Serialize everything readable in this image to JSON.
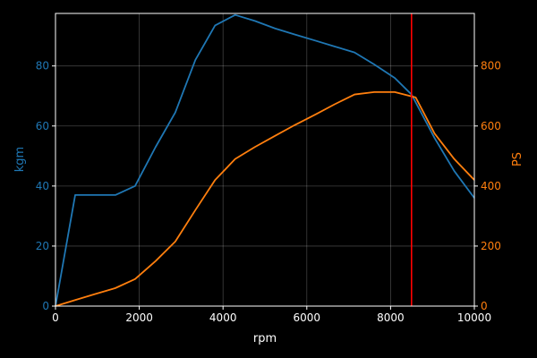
{
  "chart_data": {
    "type": "line",
    "title": "",
    "xlabel": "rpm",
    "xlim": [
      0,
      10000
    ],
    "xticks": [
      0,
      2000,
      4000,
      6000,
      8000,
      10000
    ],
    "grid": true,
    "left_axis": {
      "label": "kgm",
      "color": "#1f77b4",
      "ylim": [
        0,
        97.5
      ],
      "ticks": [
        0,
        20,
        40,
        60,
        80
      ]
    },
    "right_axis": {
      "label": "PS",
      "color": "#ff7f0e",
      "ylim": [
        0,
        975
      ],
      "ticks": [
        0,
        200,
        400,
        600,
        800
      ]
    },
    "series": [
      {
        "axis": "left",
        "color": "#1f77b4",
        "x": [
          0,
          470,
          940,
          1430,
          1900,
          2390,
          2860,
          3340,
          3810,
          4290,
          4760,
          5240,
          5710,
          6190,
          6660,
          7140,
          7610,
          8100,
          8500,
          9050,
          9520,
          10000
        ],
        "y": [
          0,
          37,
          37,
          37,
          40,
          53,
          64.5,
          82,
          93.5,
          97,
          95,
          92.5,
          90.5,
          88.5,
          86.5,
          84.5,
          80.5,
          76,
          70.5,
          56,
          45,
          36
        ]
      },
      {
        "axis": "right",
        "color": "#ff7f0e",
        "x": [
          0,
          470,
          940,
          1430,
          1900,
          2390,
          2860,
          3340,
          3810,
          4290,
          4760,
          5240,
          5710,
          6190,
          6660,
          7140,
          7610,
          8100,
          8600,
          9050,
          9520,
          10000
        ],
        "y": [
          0,
          20,
          40,
          60,
          90,
          150,
          215,
          320,
          420,
          490,
          530,
          567,
          603,
          637,
          672,
          705,
          713,
          713,
          695,
          575,
          490,
          420
        ]
      }
    ],
    "vline": {
      "x": 8500,
      "color": "#ff0000"
    }
  }
}
